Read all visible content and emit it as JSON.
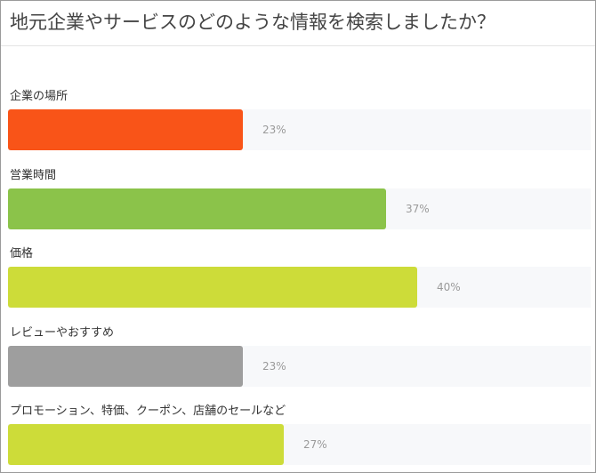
{
  "chart_data": {
    "type": "bar",
    "orientation": "horizontal",
    "title": "地元企業やサービスのどのような情報を検索しましたか？",
    "categories": [
      "企業の場所",
      "営業時間",
      "価格",
      "レビューやおすすめ",
      "プロモーション、特価、クーポン、店舗のセールなど"
    ],
    "values": [
      23,
      37,
      40,
      23,
      27
    ],
    "value_labels": [
      "23%",
      "37%",
      "40%",
      "23%",
      "27%"
    ],
    "bar_colors": [
      "#f95418",
      "#8bc34a",
      "#cddc39",
      "#9e9e9e",
      "#cddc39"
    ],
    "xlim": [
      0,
      57
    ],
    "grid": false,
    "legend": "none"
  }
}
